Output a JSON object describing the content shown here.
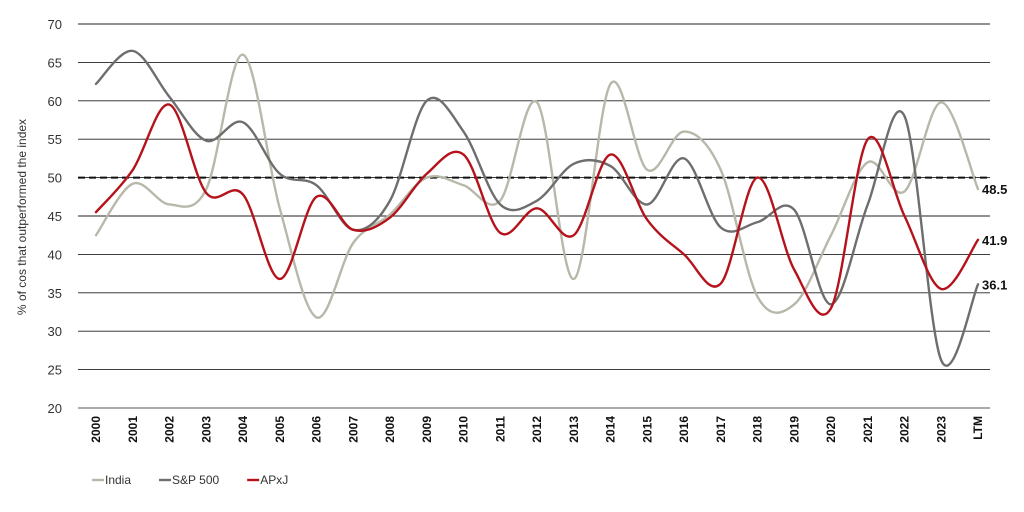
{
  "chart_data": {
    "type": "line",
    "ylabel": "% of cos that outperformed the index",
    "ylim": [
      20,
      70
    ],
    "yticks": [
      20,
      25,
      30,
      35,
      40,
      45,
      50,
      55,
      60,
      65,
      70
    ],
    "grid": "horizontal",
    "legend_position": "bottom-left",
    "reference_line": {
      "value": 50,
      "style": "dashed"
    },
    "categories": [
      "2000",
      "2001",
      "2002",
      "2003",
      "2004",
      "2005",
      "2006",
      "2007",
      "2008",
      "2009",
      "2010",
      "2011",
      "2012",
      "2013",
      "2014",
      "2015",
      "2016",
      "2017",
      "2018",
      "2019",
      "2020",
      "2021",
      "2022",
      "2023",
      "LTM"
    ],
    "series": [
      {
        "name": "India",
        "color": "#b8b8aa",
        "end_label": "48.5",
        "values": [
          42.5,
          49.2,
          46.5,
          48.5,
          66.0,
          46.0,
          31.8,
          41.5,
          45.2,
          50.0,
          49.0,
          47.0,
          59.8,
          36.8,
          62.2,
          51.0,
          56.0,
          51.0,
          34.5,
          33.5,
          42.5,
          52.0,
          48.2,
          59.8,
          48.5
        ]
      },
      {
        "name": "S&P 500",
        "color": "#6e6e6e",
        "end_label": "36.1",
        "values": [
          62.2,
          66.5,
          60.5,
          54.8,
          57.2,
          50.5,
          49.0,
          43.2,
          47.0,
          60.0,
          56.0,
          46.5,
          47.0,
          51.8,
          51.5,
          46.5,
          52.5,
          43.5,
          44.2,
          45.8,
          33.5,
          46.5,
          58.0,
          26.2,
          36.1
        ]
      },
      {
        "name": "APxJ",
        "color": "#b5121b",
        "end_label": "41.9",
        "values": [
          45.5,
          51.0,
          59.5,
          48.0,
          47.8,
          36.8,
          47.5,
          43.2,
          44.8,
          50.5,
          53.0,
          42.8,
          46.0,
          42.5,
          53.0,
          44.5,
          40.0,
          36.2,
          50.0,
          38.0,
          33.0,
          55.0,
          45.0,
          35.5,
          41.9
        ]
      }
    ]
  }
}
